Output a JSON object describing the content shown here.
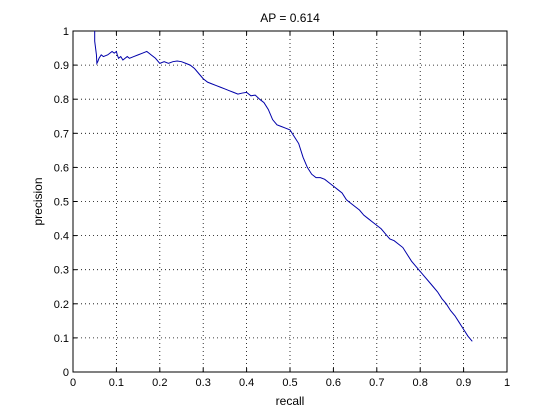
{
  "chart_data": {
    "type": "line",
    "title": "AP = 0.614",
    "xlabel": "recall",
    "ylabel": "precision",
    "xlim": [
      0,
      1
    ],
    "ylim": [
      0,
      1
    ],
    "grid": true,
    "xticks": [
      "0",
      "0.1",
      "0.2",
      "0.3",
      "0.4",
      "0.5",
      "0.6",
      "0.7",
      "0.8",
      "0.9",
      "1"
    ],
    "yticks": [
      "0",
      "0.1",
      "0.2",
      "0.3",
      "0.4",
      "0.5",
      "0.6",
      "0.7",
      "0.8",
      "0.9",
      "1"
    ],
    "line_color": "#0000aa",
    "series": [
      {
        "x": [
          0.05,
          0.05,
          0.052,
          0.054,
          0.055,
          0.057,
          0.06,
          0.065,
          0.07,
          0.08,
          0.09,
          0.095,
          0.1,
          0.102,
          0.105,
          0.11,
          0.115,
          0.12,
          0.125,
          0.13,
          0.14,
          0.15,
          0.16,
          0.17,
          0.175,
          0.18,
          0.19,
          0.2,
          0.21,
          0.22,
          0.23,
          0.24,
          0.25,
          0.26,
          0.27,
          0.28,
          0.29,
          0.3,
          0.31,
          0.32,
          0.33,
          0.34,
          0.35,
          0.36,
          0.37,
          0.38,
          0.39,
          0.4,
          0.41,
          0.42,
          0.43,
          0.44,
          0.45,
          0.46,
          0.47,
          0.48,
          0.49,
          0.5,
          0.51,
          0.52,
          0.53,
          0.54,
          0.55,
          0.56,
          0.57,
          0.58,
          0.59,
          0.6,
          0.61,
          0.62,
          0.63,
          0.64,
          0.65,
          0.66,
          0.67,
          0.68,
          0.69,
          0.7,
          0.71,
          0.72,
          0.73,
          0.74,
          0.75,
          0.76,
          0.77,
          0.78,
          0.79,
          0.8,
          0.81,
          0.82,
          0.83,
          0.84,
          0.85,
          0.86,
          0.87,
          0.88,
          0.89,
          0.9,
          0.91,
          0.92
        ],
        "y": [
          1.0,
          0.97,
          0.95,
          0.93,
          0.905,
          0.91,
          0.92,
          0.93,
          0.925,
          0.93,
          0.94,
          0.935,
          0.94,
          0.93,
          0.92,
          0.925,
          0.915,
          0.92,
          0.925,
          0.92,
          0.925,
          0.93,
          0.935,
          0.94,
          0.935,
          0.93,
          0.92,
          0.905,
          0.91,
          0.905,
          0.91,
          0.912,
          0.91,
          0.905,
          0.9,
          0.89,
          0.875,
          0.86,
          0.85,
          0.845,
          0.84,
          0.835,
          0.83,
          0.825,
          0.82,
          0.815,
          0.818,
          0.82,
          0.81,
          0.812,
          0.8,
          0.79,
          0.77,
          0.74,
          0.725,
          0.72,
          0.715,
          0.71,
          0.69,
          0.67,
          0.63,
          0.6,
          0.58,
          0.57,
          0.57,
          0.565,
          0.555,
          0.545,
          0.535,
          0.525,
          0.505,
          0.495,
          0.485,
          0.475,
          0.46,
          0.45,
          0.44,
          0.43,
          0.42,
          0.405,
          0.39,
          0.385,
          0.375,
          0.365,
          0.345,
          0.325,
          0.31,
          0.295,
          0.28,
          0.265,
          0.25,
          0.235,
          0.215,
          0.2,
          0.18,
          0.165,
          0.145,
          0.125,
          0.105,
          0.09
        ]
      }
    ]
  }
}
